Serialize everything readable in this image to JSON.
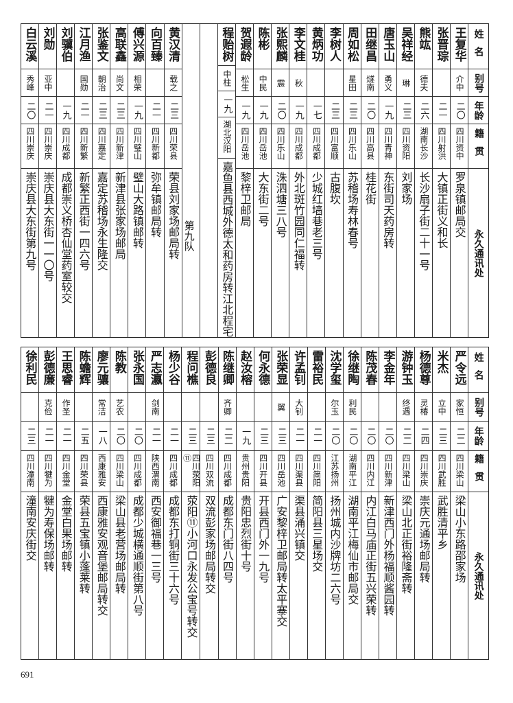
{
  "header": {
    "name": "姓名",
    "alias": "别号",
    "age": "年龄",
    "native": "籍贯",
    "address": "永久通讯处"
  },
  "top_table": {
    "section_label": "第九队",
    "right_group": [
      {
        "name": "王复华",
        "alias": "介中",
        "age": "二〇",
        "native": "四川资中",
        "address": "罗泉镇邮局交"
      },
      {
        "name": "张晋琮",
        "alias": "",
        "age": "二一",
        "native": "四川射洪",
        "address": "大镇正街义和长"
      },
      {
        "name": "熊竑",
        "alias": "德夫",
        "age": "二六",
        "native": "湖南长沙",
        "address": "长沙扇子街二十一号"
      },
      {
        "name": "吴祥经",
        "alias": "琳",
        "age": "二三",
        "native": "四川资阳",
        "address": "刘家场"
      },
      {
        "name": "唐玉山",
        "alias": "勇义",
        "age": "一九",
        "native": "四川青神",
        "address": "东街司天药房转"
      },
      {
        "name": "田继昌",
        "alias": "燧南",
        "age": "二〇",
        "native": "四川高县",
        "address": "桂花街"
      },
      {
        "name": "周如松",
        "alias": "星田",
        "age": "二三",
        "native": "四川乐山",
        "address": "苏稽场寿林春号"
      },
      {
        "name": "李树人",
        "alias": "",
        "age": "二三",
        "native": "四川富顺",
        "address": "古腹坎"
      },
      {
        "name": "黄炳功",
        "alias": "",
        "age": "一七",
        "native": "四川成都",
        "address": "少城红墙巷老三号"
      },
      {
        "name": "李文桂",
        "alias": "秋",
        "age": "一九",
        "native": "四川成都",
        "address": "外北斑竹园同仁福转"
      },
      {
        "name": "张熙麟",
        "alias": "震",
        "age": "二〇",
        "native": "四川乐山",
        "address": "洙泗塘三八号"
      },
      {
        "name": "陈彬",
        "alias": "中民",
        "age": "一九",
        "native": "四川岳池",
        "address": "大东街二号"
      },
      {
        "name": "贺遐龄",
        "alias": "松生",
        "age": "一九",
        "native": "四川岳池",
        "address": "黎梓卫邮局"
      },
      {
        "name": "程贻树",
        "alias": "中柱",
        "age": "一九",
        "native": "湖北汉阳",
        "address": "嘉鱼县西城外德太和药房转江北程宅"
      }
    ],
    "left_group": [
      {
        "name": "黄汉清",
        "alias": "载之",
        "age": "二三",
        "native": "四川荣县",
        "address": "荣县刘家场邮局转"
      },
      {
        "name": "向百臻",
        "alias": "",
        "age": "二一",
        "native": "四川新都",
        "address": "弥牟镇邮局转"
      },
      {
        "name": "傅兴源",
        "alias": "相荣",
        "age": "一九",
        "native": "四川璧山",
        "address": "璧山大路镇邮转"
      },
      {
        "name": "高联鑫",
        "alias": "尚文",
        "age": "二三",
        "native": "四川新津",
        "address": "新津县张家场邮局"
      },
      {
        "name": "张鉴文",
        "alias": "朝治",
        "age": "二三",
        "native": "四川嘉定",
        "address": "嘉定苏稽场永生隆交"
      },
      {
        "name": "江月渔",
        "alias": "国勋",
        "age": "二一",
        "native": "四川新繁",
        "address": "新繁正西街一四六号"
      },
      {
        "name": "刘骥伯",
        "alias": "",
        "age": "一九",
        "native": "四川成都",
        "address": "成都崇义桥杏仙堂药室较交"
      },
      {
        "name": "刘勋",
        "alias": "亚中",
        "age": "二一",
        "native": "四川崇庆",
        "address": "崇庆县大东街一一〇号"
      },
      {
        "name": "白云溪",
        "alias": "秀峰",
        "age": "二〇",
        "native": "四川崇庆",
        "address": "崇庆县大东街第九号"
      }
    ]
  },
  "bottom_table": {
    "rows": [
      {
        "name": "严令远",
        "alias": "家恒",
        "age": "二二",
        "native": "四川梁山",
        "address": "梁山小东路邵家场"
      },
      {
        "name": "米杰",
        "alias": "立中",
        "age": "二三",
        "native": "四川武胜",
        "address": "武胜清平乡"
      },
      {
        "name": "杨德尊",
        "alias": "灵椿",
        "age": "二四",
        "native": "四川崇庆",
        "address": "崇庆元通场邮局转"
      },
      {
        "name": "游钟玉",
        "alias": "终遇",
        "age": "二二",
        "native": "四川梁山",
        "address": "梁山北正街裕隆斋转"
      },
      {
        "name": "李金年",
        "alias": "",
        "age": "二〇",
        "native": "四川新津",
        "address": "新津西门外杨福顺酱园转"
      },
      {
        "name": "陈茂春",
        "alias": "",
        "age": "二〇",
        "native": "四川内江",
        "address": "内江白马庙正街五兴荣转"
      },
      {
        "name": "徐继陶",
        "alias": "利民",
        "age": "二〇",
        "native": "湖南平江",
        "address": "湖南平江梅仙市邮局交"
      },
      {
        "name": "沈学玺",
        "alias": "尔玉",
        "age": "二〇",
        "native": "江苏扬州",
        "address": "扬州城内沙牌坊二六号"
      },
      {
        "name": "雷裕民",
        "alias": "",
        "age": "二一",
        "native": "四川简阳",
        "address": "简阳县三星场交"
      },
      {
        "name": "许孟钊",
        "alias": "大钊",
        "age": "二一",
        "native": "四川渠县",
        "address": "渠县涌兴镇交"
      },
      {
        "name": "张荣显",
        "alias": "翼",
        "age": "二三",
        "native": "四川岳池",
        "address": "广安黎梓卫邮局转太平寨交"
      },
      {
        "name": "何永德",
        "alias": "",
        "age": "二三",
        "native": "四川开县",
        "address": "开县西门外一九号"
      },
      {
        "name": "赵汝榕",
        "alias": "",
        "age": "一九",
        "native": "贵州贵阳",
        "address": "贵阳忠烈街十号"
      },
      {
        "name": "陈继卿",
        "alias": "齐卿",
        "age": "二二",
        "native": "四川成都",
        "address": "成都东门街八四号"
      },
      {
        "name": "彭德良",
        "alias": "",
        "age": "二三",
        "native": "四川双流",
        "address": "双流彭家场邮局转交"
      },
      {
        "name": "程问樵",
        "alias": "",
        "age": "二三",
        "native": "四川荥阳⑪",
        "address": "荥阳⑪小河口永发公宝号转交"
      },
      {
        "name": "杨少谷",
        "alias": "",
        "age": "二一",
        "native": "四川成都",
        "address": "成都东打铜街三十六号"
      },
      {
        "name": "严志瀛",
        "alias": "剑南",
        "age": "二一",
        "native": "陕西渭南",
        "address": "西安御福巷一三号"
      },
      {
        "name": "张永国",
        "alias": "",
        "age": "二〇",
        "native": "四川成都",
        "address": "成都少城横通顺街第八号"
      },
      {
        "name": "陈教",
        "alias": "艺农",
        "age": "二〇",
        "native": "四川梁山",
        "address": "梁山县老营场邮局转"
      },
      {
        "name": "廖元骧",
        "alias": "常洁",
        "age": "一八",
        "native": "西康雅安",
        "address": "西康雅安观音堡邮局转交"
      },
      {
        "name": "陈蟾辉",
        "alias": "",
        "age": "二五",
        "native": "四川荣县",
        "address": "荣县五宝镇小蓬莱转"
      },
      {
        "name": "王思睿",
        "alias": "作圣",
        "age": "二一",
        "native": "四川金堂",
        "address": "金堂白果场邮转"
      },
      {
        "name": "彭德廉",
        "alias": "克俭",
        "age": "二一",
        "native": "四川犍为",
        "address": "犍为寿保场邮转"
      },
      {
        "name": "徐利民",
        "alias": "",
        "age": "二三",
        "native": "四川潼南",
        "address": "潼南安庆街交"
      }
    ]
  },
  "page_number": "691"
}
